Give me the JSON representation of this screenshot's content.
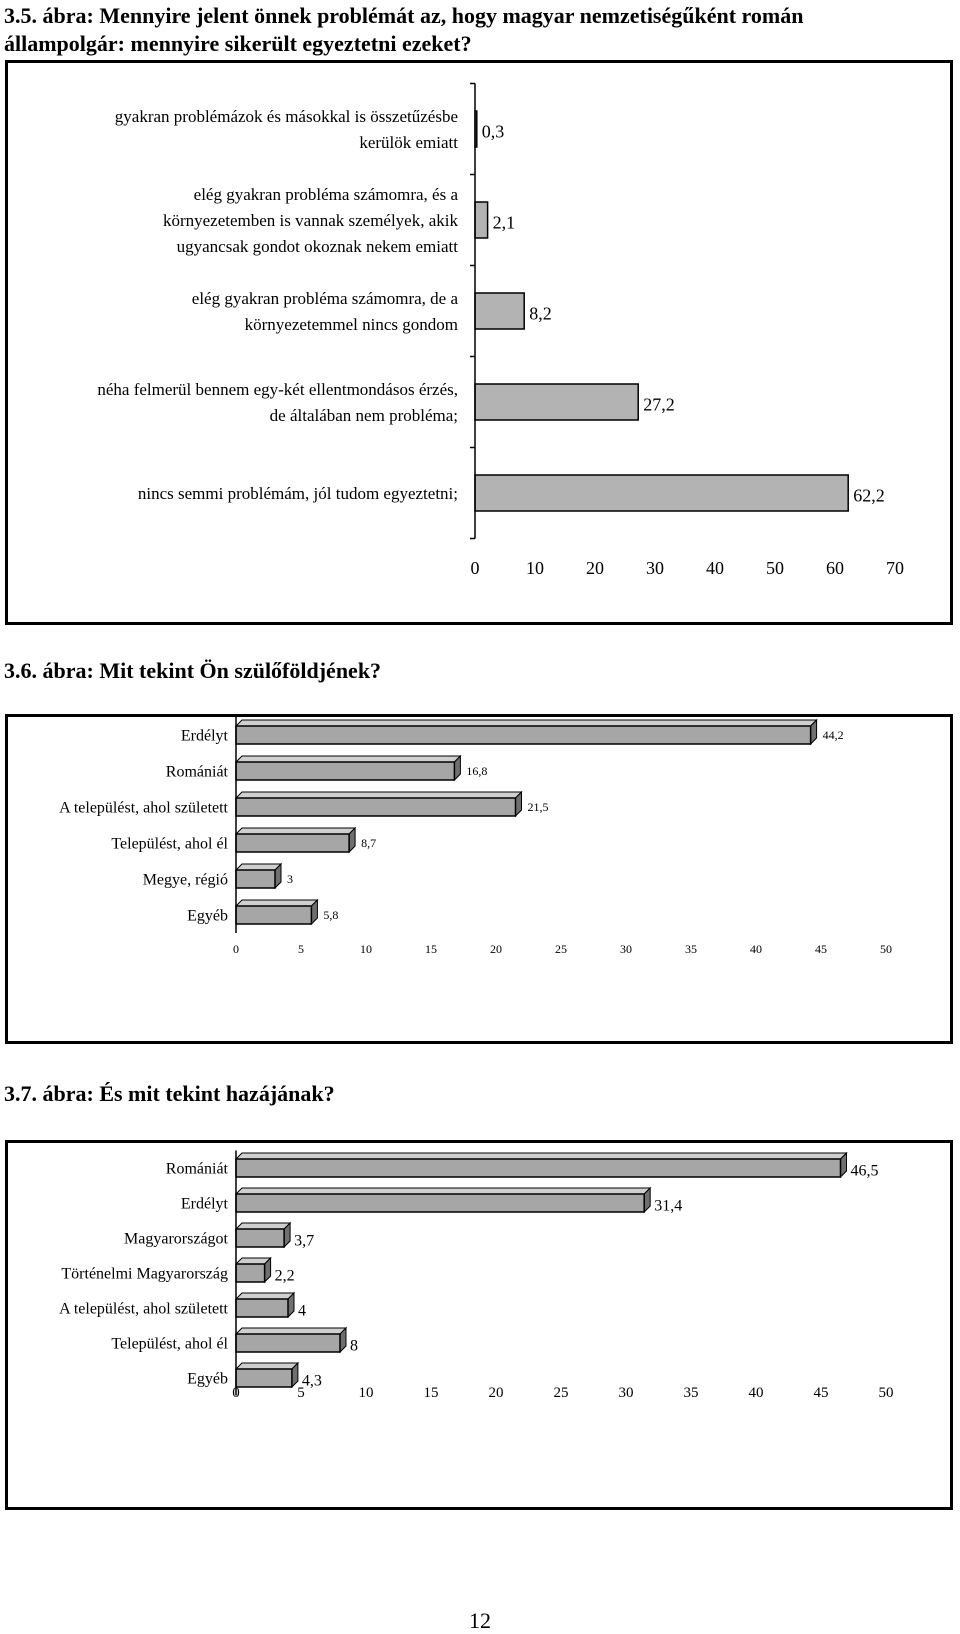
{
  "figures": [
    {
      "title": "3.5. ábra: Mennyire jelent önnek problémát az, hogy magyar nemzetiségűként román állampolgár: mennyire sikerült egyeztetni ezeket?",
      "chart_data": {
        "type": "bar",
        "orientation": "horizontal",
        "categories": [
          "gyakran problémázok és másokkal is összetűzésbe kerülök emiatt",
          "elég gyakran probléma számomra, és a környezetemben is vannak személyek, akik ugyancsak gondot okoznak nekem emiatt",
          "elég gyakran probléma számomra, de a környezetemmel nincs gondom",
          "néha felmerül bennem egy-két ellentmondásos érzés, de általában nem probléma;",
          "nincs semmi problémám, jól tudom egyeztetni;"
        ],
        "values": [
          0.3,
          2.1,
          8.2,
          27.2,
          62.2
        ],
        "value_labels": [
          "0,3",
          "2,1",
          "8,2",
          "27,2",
          "62,2"
        ],
        "xlim": [
          0,
          70
        ],
        "ticks": [
          "0",
          "10",
          "20",
          "30",
          "40",
          "50",
          "60",
          "70"
        ],
        "bar_color": "#b3b3b3",
        "grid": false,
        "legend": "none"
      }
    },
    {
      "title": "3.6. ábra: Mit tekint Ön szülőföldjének?",
      "chart_data": {
        "type": "bar",
        "orientation": "horizontal",
        "style": "3d",
        "categories": [
          "Erdélyt",
          "Romániát",
          "A települést, ahol született",
          "Települést, ahol él",
          "Megye, régió",
          "Egyéb"
        ],
        "values": [
          44.2,
          16.8,
          21.5,
          8.7,
          3,
          5.8
        ],
        "value_labels": [
          "44,2",
          "16,8",
          "21,5",
          "8,7",
          "3",
          "5,8"
        ],
        "xlim": [
          0,
          50
        ],
        "ticks": [
          "0",
          "5",
          "10",
          "15",
          "20",
          "25",
          "30",
          "35",
          "40",
          "45",
          "50"
        ],
        "bar_color": "#a6a6a6",
        "grid": false,
        "legend": "none"
      }
    },
    {
      "title": "3.7. ábra: És mit tekint hazájának?",
      "chart_data": {
        "type": "bar",
        "orientation": "horizontal",
        "style": "3d",
        "categories": [
          "Romániát",
          "Erdélyt",
          "Magyarországot",
          "Történelmi Magyarország",
          "A települést, ahol született",
          "Települést, ahol él",
          "Egyéb"
        ],
        "values": [
          46.5,
          31.4,
          3.7,
          2.2,
          4,
          8,
          4.3
        ],
        "value_labels": [
          "46,5",
          "31,4",
          "3,7",
          "2,2",
          "4",
          "8",
          "4,3"
        ],
        "xlim": [
          0,
          50
        ],
        "ticks": [
          "0",
          "5",
          "10",
          "15",
          "20",
          "25",
          "30",
          "35",
          "40",
          "45",
          "50"
        ],
        "bar_color": "#a6a6a6",
        "grid": false,
        "legend": "none"
      }
    }
  ],
  "page_number": "12"
}
